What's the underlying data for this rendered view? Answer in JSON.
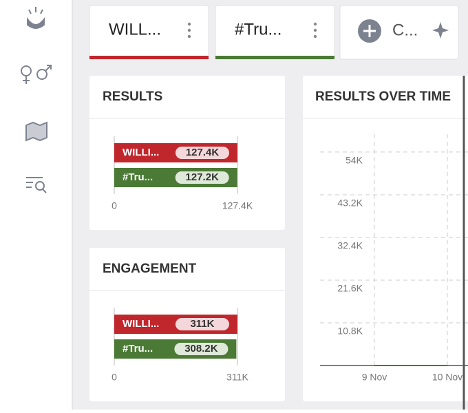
{
  "tabs": [
    {
      "label": "WILL...",
      "color": "#c0272d"
    },
    {
      "label": "#Tru...",
      "color": "#4a7a35"
    },
    {
      "label": "C..."
    }
  ],
  "results": {
    "type": "bar",
    "title": "RESULTS",
    "categories": [
      "WILLI...",
      "#Tru..."
    ],
    "values": [
      127400,
      127200
    ],
    "value_labels": [
      "127.4K",
      "127.2K"
    ],
    "colors": [
      "#c0272d",
      "#4a7a35"
    ],
    "xlim": [
      0,
      127400
    ],
    "xticks": [
      0,
      {
        "value": 127400,
        "label": "127.4K"
      }
    ]
  },
  "engagement": {
    "type": "bar",
    "title": "ENGAGEMENT",
    "categories": [
      "WILLI...",
      "#Tru..."
    ],
    "values": [
      311000,
      308200
    ],
    "value_labels": [
      "311K",
      "308.2K"
    ],
    "colors": [
      "#c0272d",
      "#4a7a35"
    ],
    "xlim": [
      0,
      311000
    ],
    "xticks": [
      0,
      {
        "value": 311000,
        "label": "311K"
      }
    ]
  },
  "results_over_time": {
    "type": "line",
    "title": "RESULTS OVER TIME",
    "categories": [
      "9 Nov",
      "10 Nov"
    ],
    "series": [
      {
        "color": "#4a7a35",
        "values": [
          0,
          0
        ]
      }
    ],
    "ylim": [
      0,
      62000
    ],
    "yticks": [
      {
        "value": 10800,
        "label": "10.8K"
      },
      {
        "value": 21600,
        "label": "21.6K"
      },
      {
        "value": 32400,
        "label": "32.4K"
      },
      {
        "value": 43200,
        "label": "43.2K"
      },
      {
        "value": 54000,
        "label": "54K"
      }
    ]
  }
}
